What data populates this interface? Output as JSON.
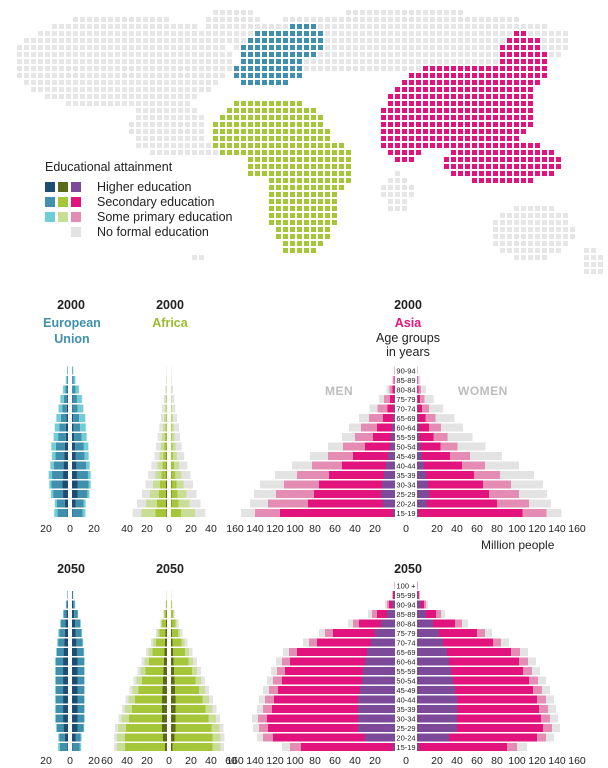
{
  "colors": {
    "eu": [
      "#1c4e73",
      "#3f8fad",
      "#6fcdd6",
      "#e3e3e3"
    ],
    "africa": [
      "#5b6a17",
      "#a6c63a",
      "#c8dd95",
      "#e3e3e3"
    ],
    "asia": [
      "#7d4a9a",
      "#e2137c",
      "#e58cb5",
      "#e3e3e3"
    ],
    "map_grey": "#e6e6e6"
  },
  "legend": {
    "title": "Educational attainment",
    "items": [
      {
        "label": "Higher education",
        "level": 0
      },
      {
        "label": "Secondary education",
        "level": 1
      },
      {
        "label": "Some primary education",
        "level": 2
      },
      {
        "label": "No formal education",
        "level": 3
      }
    ]
  },
  "labels": {
    "year_2000": "2000",
    "year_2050": "2050",
    "eu_line1": "European",
    "eu_line2": "Union",
    "africa": "Africa",
    "asia": "Asia",
    "age_line1": "Age groups",
    "age_line2": "in years",
    "men": "MEN",
    "women": "WOMEN",
    "unit": "Million people"
  },
  "chart_data": [
    {
      "type": "bar",
      "title": "2000 European Union",
      "orientation": "horizontal-pyramid",
      "age_groups": [
        "15-19",
        "20-24",
        "25-29",
        "30-34",
        "35-39",
        "40-44",
        "45-49",
        "50-54",
        "55-59",
        "60-64",
        "65-69",
        "70-74",
        "75-79",
        "80-84",
        "85-89",
        "90-94"
      ],
      "xlim": [
        -20,
        20
      ],
      "x_ticks": [
        "20",
        "0",
        "20"
      ],
      "men": {
        "higher": [
          0.5,
          3,
          4.5,
          5,
          4.5,
          4,
          3.5,
          3,
          2,
          2,
          1.5,
          1,
          0.8,
          0.5,
          0.2,
          0.1
        ],
        "secondary": [
          9,
          7,
          9,
          10,
          10,
          9,
          8,
          8,
          7,
          6,
          5,
          4,
          3,
          2,
          0.8,
          0.3
        ],
        "primary": [
          3,
          2,
          2,
          2,
          3,
          3,
          3,
          4,
          4,
          4,
          4,
          3.5,
          3,
          2,
          1,
          0.4
        ],
        "none": [
          0.5,
          0.4,
          0.4,
          0.5,
          0.5,
          0.5,
          0.5,
          0.5,
          0.5,
          0.5,
          0.5,
          0.5,
          0.5,
          0.3,
          0.2,
          0.1
        ]
      },
      "women": {
        "higher": [
          0.6,
          3.5,
          5,
          5,
          4.5,
          4,
          3.5,
          2.8,
          1.8,
          1.5,
          1,
          0.7,
          0.5,
          0.3,
          0.1,
          0.05
        ],
        "secondary": [
          9,
          7,
          9,
          10,
          10,
          9,
          8,
          8,
          7,
          6,
          5.5,
          4.5,
          4,
          3,
          1.5,
          0.5
        ],
        "primary": [
          2.5,
          1.8,
          1.8,
          2,
          2.5,
          3,
          3.5,
          4,
          4.5,
          5,
          5.5,
          5,
          4.5,
          3,
          1.5,
          0.6
        ],
        "none": [
          0.5,
          0.4,
          0.4,
          0.5,
          0.5,
          0.5,
          0.5,
          0.5,
          0.5,
          0.6,
          0.6,
          0.6,
          0.6,
          0.4,
          0.2,
          0.1
        ]
      }
    },
    {
      "type": "bar",
      "title": "2000 Africa",
      "orientation": "horizontal-pyramid",
      "age_groups": [
        "15-19",
        "20-24",
        "25-29",
        "30-34",
        "35-39",
        "40-44",
        "45-49",
        "50-54",
        "55-59",
        "60-64",
        "65-69",
        "70-74",
        "75-79",
        "80-84",
        "85-89",
        "90-94"
      ],
      "xlim": [
        -40,
        40
      ],
      "x_ticks": [
        "40",
        "20",
        "0",
        "20",
        "40"
      ],
      "men": {
        "higher": [
          0.5,
          1,
          1,
          1,
          0.8,
          0.6,
          0.5,
          0.4,
          0.3,
          0.2,
          0.2,
          0.1,
          0.1,
          0.05,
          0.02,
          0.01
        ],
        "secondary": [
          11,
          9,
          7,
          6,
          5,
          4,
          3,
          2.5,
          2,
          1.5,
          1,
          0.7,
          0.4,
          0.2,
          0.1,
          0.05
        ],
        "primary": [
          14,
          11,
          9,
          7,
          6,
          5,
          4,
          3.5,
          3,
          2.5,
          2,
          1.5,
          1,
          0.6,
          0.3,
          0.1
        ],
        "none": [
          9,
          9,
          8,
          7.5,
          7,
          6,
          5,
          4.5,
          4,
          3.5,
          3,
          2.5,
          1.8,
          1,
          0.4,
          0.2
        ]
      },
      "women": {
        "higher": [
          0.3,
          0.6,
          0.6,
          0.5,
          0.4,
          0.3,
          0.2,
          0.2,
          0.1,
          0.1,
          0.05,
          0.05,
          0.02,
          0.01,
          0.01,
          0.01
        ],
        "secondary": [
          10,
          7,
          6,
          5,
          4,
          3,
          2,
          1.5,
          1,
          0.8,
          0.5,
          0.3,
          0.2,
          0.1,
          0.05,
          0.02
        ],
        "primary": [
          14,
          11,
          9,
          7,
          6,
          5,
          4,
          3,
          2.5,
          2,
          1.5,
          1,
          0.7,
          0.4,
          0.2,
          0.1
        ],
        "none": [
          10,
          11,
          10,
          9.5,
          9,
          8,
          7,
          6,
          5.5,
          5,
          4,
          3,
          2.3,
          1.5,
          0.6,
          0.3
        ]
      }
    },
    {
      "type": "bar",
      "title": "2000 Asia",
      "orientation": "horizontal-pyramid",
      "age_groups": [
        "15-19",
        "20-24",
        "25-29",
        "30-34",
        "35-39",
        "40-44",
        "45-49",
        "50-54",
        "55-59",
        "60-64",
        "65-69",
        "70-74",
        "75-79",
        "80-84",
        "85-89",
        "90-94"
      ],
      "xlim": [
        -160,
        160
      ],
      "x_ticks": [
        "160",
        "140",
        "120",
        "100",
        "80",
        "60",
        "40",
        "20",
        "0",
        "20",
        "40",
        "60",
        "80",
        "100",
        "120",
        "140",
        "160"
      ],
      "men": {
        "higher": [
          2,
          12,
          14,
          13,
          11,
          9,
          7,
          5,
          4,
          3,
          2,
          1.5,
          1,
          0.5,
          0.2,
          0.05
        ],
        "secondary": [
          113,
          75,
          67,
          63,
          55,
          44,
          35,
          25,
          18,
          15,
          10,
          6,
          4,
          2,
          0.6,
          0.2
        ],
        "primary": [
          25,
          40,
          38,
          35,
          32,
          30,
          25,
          22,
          18,
          16,
          14,
          10,
          6,
          3,
          1.2,
          0.4
        ],
        "none": [
          14,
          18,
          22,
          24,
          22,
          20,
          18,
          15,
          13,
          12,
          10,
          8,
          5,
          3,
          1.2,
          0.4
        ]
      },
      "women": {
        "higher": [
          1.5,
          10,
          12,
          11,
          9,
          7,
          5,
          3.5,
          2.5,
          2,
          1.5,
          1,
          0.6,
          0.3,
          0.1,
          0.05
        ],
        "secondary": [
          104,
          70,
          60,
          55,
          48,
          38,
          28,
          20,
          14,
          10,
          7,
          4,
          2.5,
          1.2,
          0.4,
          0.1
        ],
        "primary": [
          24,
          32,
          30,
          28,
          26,
          23,
          20,
          17,
          14,
          12,
          10,
          7,
          4.5,
          2.5,
          1,
          0.3
        ],
        "none": [
          15,
          22,
          28,
          32,
          34,
          34,
          32,
          28,
          25,
          22,
          19,
          14,
          9,
          5,
          2,
          0.6
        ]
      }
    },
    {
      "type": "bar",
      "title": "2050 European Union",
      "orientation": "horizontal-pyramid",
      "age_groups": [
        "15-19",
        "20-24",
        "25-29",
        "30-34",
        "35-39",
        "40-44",
        "45-49",
        "50-54",
        "55-59",
        "60-64",
        "65-69",
        "70-74",
        "75-79",
        "80-84",
        "85-89",
        "90-94",
        "95-99"
      ],
      "xlim": [
        -20,
        20
      ],
      "x_ticks": [
        "20",
        "0",
        "20"
      ],
      "men": {
        "higher": [
          0.5,
          3,
          4,
          4.5,
          4.5,
          4.5,
          4.5,
          4.5,
          4.5,
          4.5,
          4,
          3.5,
          3,
          2.5,
          1.5,
          0.6,
          0.2
        ],
        "secondary": [
          7,
          5,
          6,
          6.5,
          6.5,
          6.5,
          6.5,
          6.5,
          6.5,
          6.5,
          6,
          5.5,
          5,
          4,
          2.5,
          1,
          0.3
        ],
        "primary": [
          1.5,
          0.8,
          0.8,
          0.8,
          0.8,
          0.8,
          0.8,
          0.8,
          0.8,
          0.8,
          0.8,
          0.8,
          0.8,
          0.7,
          0.5,
          0.3,
          0.1
        ],
        "none": [
          0.2,
          0.2,
          0.2,
          0.2,
          0.2,
          0.2,
          0.2,
          0.2,
          0.2,
          0.2,
          0.2,
          0.2,
          0.2,
          0.2,
          0.1,
          0.1,
          0.05
        ]
      },
      "women": {
        "higher": [
          0.6,
          3.5,
          5,
          5,
          5,
          5,
          5,
          5,
          5,
          5,
          4.5,
          4,
          3.5,
          3,
          2,
          1,
          0.4
        ],
        "secondary": [
          6.5,
          4.5,
          5.5,
          6,
          6,
          6,
          6,
          6,
          6,
          6,
          6,
          5.5,
          5,
          4.5,
          3,
          1.5,
          0.5
        ],
        "primary": [
          1.2,
          0.6,
          0.6,
          0.6,
          0.6,
          0.6,
          0.6,
          0.6,
          0.6,
          0.6,
          0.6,
          0.6,
          0.6,
          0.6,
          0.5,
          0.4,
          0.2
        ],
        "none": [
          0.2,
          0.2,
          0.2,
          0.2,
          0.2,
          0.2,
          0.2,
          0.2,
          0.2,
          0.2,
          0.2,
          0.2,
          0.2,
          0.2,
          0.1,
          0.1,
          0.05
        ]
      }
    },
    {
      "type": "bar",
      "title": "2050 Africa",
      "orientation": "horizontal-pyramid",
      "age_groups": [
        "15-19",
        "20-24",
        "25-29",
        "30-34",
        "35-39",
        "40-44",
        "45-49",
        "50-54",
        "55-59",
        "60-64",
        "65-69",
        "70-74",
        "75-79",
        "80-84",
        "85-89",
        "90-94",
        "95-99"
      ],
      "xlim": [
        -60,
        60
      ],
      "x_ticks": [
        "60",
        "40",
        "20",
        "0",
        "20",
        "40",
        "60"
      ],
      "men": {
        "higher": [
          2,
          4,
          5,
          5,
          5,
          5,
          4.5,
          4,
          3.5,
          3,
          2.5,
          2,
          1.5,
          1,
          0.5,
          0.2,
          0.05
        ],
        "secondary": [
          40,
          38,
          36,
          33,
          30,
          27,
          24,
          21,
          18,
          15,
          12,
          9,
          6,
          4,
          2,
          0.8,
          0.2
        ],
        "primary": [
          8,
          8,
          8,
          7.5,
          7,
          6.5,
          6,
          5.5,
          5,
          4.5,
          4,
          3,
          2,
          1.2,
          0.6,
          0.2,
          0.05
        ],
        "none": [
          3,
          3,
          3,
          3,
          3,
          3,
          3,
          3,
          3,
          3,
          2.5,
          2,
          1.5,
          1,
          0.5,
          0.2,
          0.05
        ]
      },
      "women": {
        "higher": [
          1.5,
          3.5,
          4.5,
          4.5,
          4.5,
          4.5,
          4,
          3.5,
          3,
          2.5,
          2,
          1.5,
          1,
          0.7,
          0.3,
          0.1,
          0.03
        ],
        "secondary": [
          40,
          38,
          36,
          33,
          30,
          27,
          24,
          21,
          18,
          15,
          12,
          9,
          6,
          4,
          2,
          0.8,
          0.2
        ],
        "primary": [
          8,
          8,
          8,
          7.5,
          7,
          6.5,
          6,
          5.5,
          5,
          4.5,
          4,
          3,
          2,
          1.2,
          0.6,
          0.2,
          0.05
        ],
        "none": [
          3.5,
          4,
          4,
          4,
          4,
          4,
          4,
          4,
          4,
          4,
          3.5,
          3,
          2.5,
          1.8,
          0.8,
          0.3,
          0.1
        ]
      }
    },
    {
      "type": "bar",
      "title": "2050 Asia",
      "orientation": "horizontal-pyramid",
      "age_groups": [
        "15-19",
        "20-24",
        "25-29",
        "30-34",
        "35-39",
        "40-44",
        "45-49",
        "50-54",
        "55-59",
        "60-64",
        "65-69",
        "70-74",
        "75-79",
        "80-84",
        "85-89",
        "90-94",
        "95-99",
        "100 +"
      ],
      "xlim": [
        -160,
        160
      ],
      "x_ticks": [
        "160",
        "140",
        "120",
        "100",
        "80",
        "60",
        "40",
        "20",
        "0",
        "20",
        "40",
        "60",
        "80",
        "100",
        "120",
        "140",
        "160"
      ],
      "men": {
        "higher": [
          2,
          30,
          37,
          37,
          37,
          37,
          35,
          33,
          32,
          30,
          28,
          24,
          20,
          14,
          8,
          3,
          1,
          0.2
        ],
        "secondary": [
          92,
          92,
          90,
          91,
          86,
          84,
          82,
          80,
          78,
          75,
          70,
          54,
          42,
          22,
          10,
          3,
          1,
          0.2
        ],
        "primary": [
          11,
          10,
          9,
          9,
          9,
          9,
          9,
          9,
          8,
          8,
          8,
          8,
          8,
          6,
          5,
          2,
          0.6,
          0.1
        ],
        "none": [
          8,
          6,
          6,
          6,
          6,
          6,
          6,
          6,
          6,
          6,
          6,
          6,
          6,
          5,
          4,
          2,
          0.6,
          0.1
        ]
      },
      "women": {
        "higher": [
          2,
          32,
          40,
          40,
          40,
          40,
          38,
          36,
          34,
          32,
          30,
          26,
          22,
          16,
          9,
          4,
          1.2,
          0.3
        ],
        "secondary": [
          88,
          88,
          86,
          84,
          82,
          80,
          78,
          76,
          72,
          70,
          64,
          50,
          38,
          22,
          10,
          3,
          1,
          0.2
        ],
        "primary": [
          10,
          9,
          9,
          9,
          9,
          9,
          9,
          9,
          9,
          9,
          9,
          8,
          8,
          7,
          5,
          2,
          0.6,
          0.1
        ],
        "none": [
          10,
          8,
          8,
          8,
          8,
          8,
          8,
          8,
          8,
          8,
          8,
          8,
          7,
          6,
          4,
          2,
          0.6,
          0.1
        ]
      }
    }
  ]
}
